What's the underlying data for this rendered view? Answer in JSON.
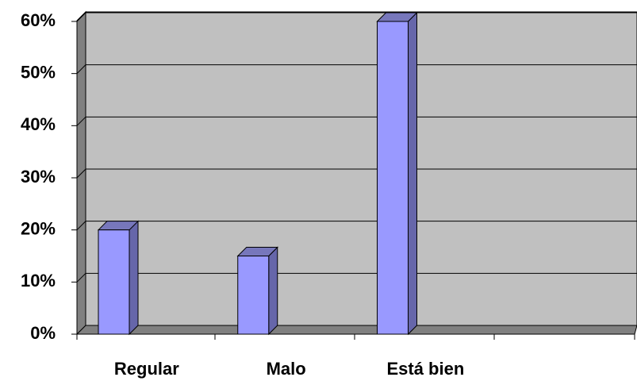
{
  "chart_data": {
    "type": "bar3d",
    "categories": [
      "Regular",
      "Malo",
      "Está bien",
      null
    ],
    "values": [
      20,
      15,
      60,
      null
    ],
    "color": "#9999ff",
    "ylim": [
      0,
      60
    ],
    "yticks": [
      {
        "value": 0,
        "label": "0%"
      },
      {
        "value": 10,
        "label": "10%"
      },
      {
        "value": 20,
        "label": "20%"
      },
      {
        "value": 30,
        "label": "30%"
      },
      {
        "value": 40,
        "label": "40%"
      },
      {
        "value": 50,
        "label": "50%"
      },
      {
        "value": 60,
        "label": "60%"
      }
    ],
    "grid": true
  }
}
